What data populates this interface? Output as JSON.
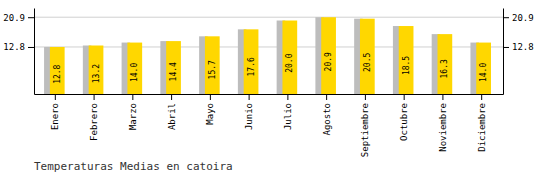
{
  "chart_data": {
    "type": "bar",
    "title": "Temperaturas Medias en catoira",
    "categories": [
      "Enero",
      "Febrero",
      "Marzo",
      "Abril",
      "Mayo",
      "Junio",
      "Julio",
      "Agosto",
      "Septiembre",
      "Octubre",
      "Noviembre",
      "Diciembre"
    ],
    "values": [
      12.8,
      13.2,
      14.0,
      14.4,
      15.7,
      17.6,
      20.0,
      20.9,
      20.5,
      18.5,
      16.3,
      14.0
    ],
    "value_labels": [
      "12.8",
      "13.2",
      "14.0",
      "14.4",
      "15.7",
      "17.6",
      "20.0",
      "20.9",
      "20.5",
      "18.5",
      "16.3",
      "14.0"
    ],
    "color": "#FFD700",
    "data_labels": true,
    "ylim": [
      0,
      23.408
    ],
    "yticks": [
      12.8,
      20.9
    ],
    "y2lim": [
      0,
      23.408
    ],
    "y2ticks": [
      12.8,
      20.9
    ],
    "grid": true
  }
}
